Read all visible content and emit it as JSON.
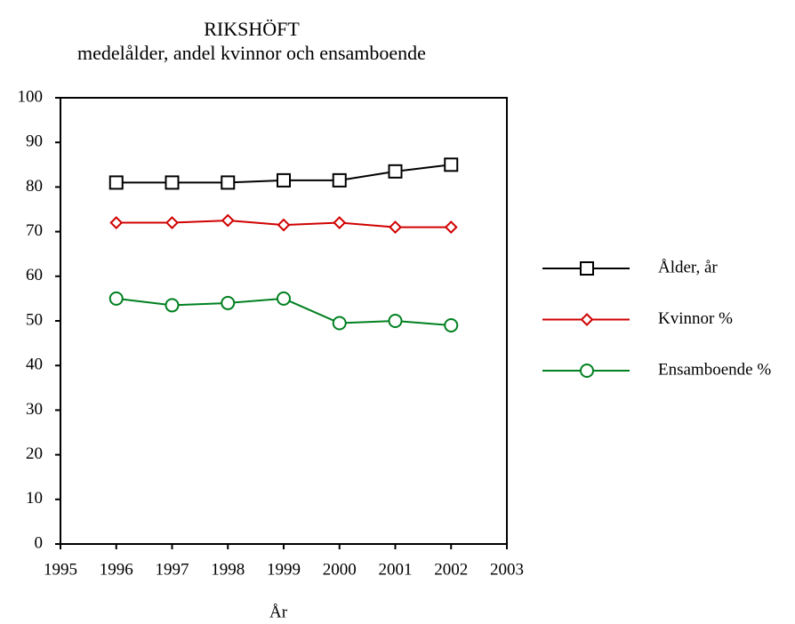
{
  "chart_data": {
    "type": "line",
    "title": "RIKSHÖFT",
    "subtitle": "medelålder, andel kvinnor och ensamboende",
    "x_label": "År",
    "x": [
      1996,
      1997,
      1998,
      1999,
      2000,
      2001,
      2002
    ],
    "series": [
      {
        "name": "Ålder, år",
        "color": "#000000",
        "marker": "square",
        "values": [
          81,
          81,
          81,
          81.5,
          81.5,
          83.5,
          85
        ]
      },
      {
        "name": "Kvinnor %",
        "color": "#d00000",
        "marker": "diamond",
        "values": [
          72,
          72,
          72.5,
          71.5,
          72,
          71,
          71
        ]
      },
      {
        "name": "Ensamboende %",
        "color": "#008020",
        "marker": "circle",
        "values": [
          55,
          53.5,
          54,
          55,
          49.5,
          50,
          49
        ]
      }
    ],
    "xlim": [
      1995,
      2003
    ],
    "xticks": [
      1995,
      1996,
      1997,
      1998,
      1999,
      2000,
      2001,
      2002,
      2003
    ],
    "ylim": [
      0,
      100
    ],
    "yticks": [
      0,
      10,
      20,
      30,
      40,
      50,
      60,
      70,
      80,
      90,
      100
    ],
    "legend": "right"
  }
}
